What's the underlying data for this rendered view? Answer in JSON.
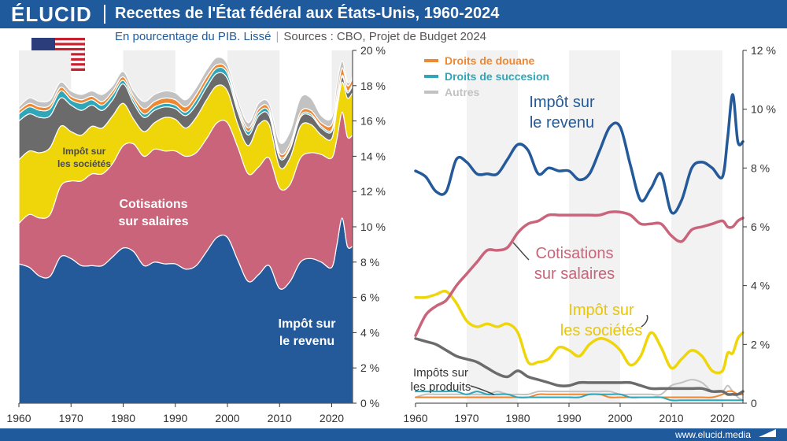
{
  "header": {
    "logo": "ÉLUCID",
    "title": "Recettes de l'État fédéral aux États-Unis, 1960-2024",
    "subtitle_part1": "En pourcentage du PIB. Lissé",
    "subtitle_part2": "Sources : CBO, Projet de Budget 2024"
  },
  "footer": {
    "url": "www.elucid.media"
  },
  "colors": {
    "brand": "#1f5a9c",
    "impot_revenu": "#245a9a",
    "cotisations": "#c9647a",
    "impot_societes": "#eed60a",
    "impots_produits": "#6b6b6b",
    "droits_succession": "#2fa7b9",
    "droits_douane": "#ee8833",
    "autres": "#c2c2c2"
  },
  "chart_data": [
    {
      "type": "area",
      "stacked": true,
      "x": [
        1960,
        1962,
        1964,
        1966,
        1968,
        1970,
        1972,
        1974,
        1976,
        1978,
        1980,
        1982,
        1984,
        1986,
        1988,
        1990,
        1992,
        1994,
        1996,
        1998,
        2000,
        2002,
        2004,
        2006,
        2008,
        2010,
        2012,
        2014,
        2016,
        2018,
        2020,
        2021,
        2022,
        2023,
        2024
      ],
      "series": [
        {
          "name": "Impôt sur le revenu",
          "values": [
            7.9,
            7.7,
            7.2,
            7.2,
            8.3,
            8.2,
            7.8,
            7.8,
            7.8,
            8.3,
            8.8,
            8.6,
            7.8,
            8.0,
            7.9,
            7.9,
            7.6,
            7.8,
            8.6,
            9.4,
            9.4,
            8.1,
            6.9,
            7.3,
            7.8,
            6.5,
            6.9,
            8.0,
            8.2,
            8.0,
            7.7,
            9.0,
            10.5,
            8.9,
            8.9
          ]
        },
        {
          "name": "Cotisations sur salaires",
          "values": [
            2.3,
            3.0,
            3.3,
            3.5,
            4.0,
            4.4,
            4.8,
            5.2,
            5.2,
            5.3,
            5.8,
            6.1,
            6.2,
            6.4,
            6.4,
            6.4,
            6.4,
            6.4,
            6.4,
            6.5,
            6.5,
            6.4,
            6.1,
            6.1,
            6.1,
            5.7,
            5.5,
            5.9,
            6.0,
            6.1,
            6.2,
            6.0,
            6.0,
            6.2,
            6.3
          ]
        },
        {
          "name": "Impôt sur les sociétés",
          "values": [
            3.6,
            3.6,
            3.7,
            3.8,
            3.4,
            2.8,
            2.6,
            2.7,
            2.6,
            2.7,
            2.4,
            1.4,
            1.4,
            1.5,
            1.9,
            1.8,
            1.6,
            2.0,
            2.2,
            2.1,
            1.8,
            1.3,
            1.6,
            2.4,
            1.9,
            1.2,
            1.5,
            1.8,
            1.6,
            1.1,
            1.1,
            1.7,
            1.7,
            2.2,
            2.4
          ]
        },
        {
          "name": "Impôts sur les produits",
          "values": [
            2.2,
            2.1,
            2.0,
            1.8,
            1.6,
            1.5,
            1.4,
            1.2,
            1.0,
            0.9,
            1.1,
            0.9,
            0.8,
            0.7,
            0.6,
            0.6,
            0.7,
            0.7,
            0.7,
            0.7,
            0.7,
            0.7,
            0.6,
            0.5,
            0.5,
            0.5,
            0.5,
            0.5,
            0.5,
            0.4,
            0.4,
            0.3,
            0.3,
            0.3,
            0.4
          ]
        },
        {
          "name": "Droits de succesion",
          "values": [
            0.4,
            0.4,
            0.4,
            0.4,
            0.4,
            0.3,
            0.4,
            0.3,
            0.3,
            0.3,
            0.2,
            0.2,
            0.2,
            0.2,
            0.2,
            0.2,
            0.2,
            0.3,
            0.3,
            0.3,
            0.3,
            0.2,
            0.2,
            0.2,
            0.2,
            0.1,
            0.1,
            0.1,
            0.1,
            0.1,
            0.1,
            0.1,
            0.1,
            0.1,
            0.1
          ]
        },
        {
          "name": "Droits de douane",
          "values": [
            0.2,
            0.2,
            0.2,
            0.2,
            0.2,
            0.2,
            0.2,
            0.2,
            0.2,
            0.2,
            0.2,
            0.2,
            0.3,
            0.3,
            0.3,
            0.3,
            0.3,
            0.3,
            0.3,
            0.2,
            0.2,
            0.2,
            0.2,
            0.2,
            0.2,
            0.2,
            0.2,
            0.2,
            0.2,
            0.2,
            0.3,
            0.4,
            0.4,
            0.3,
            0.3
          ]
        },
        {
          "name": "Autres",
          "values": [
            0.2,
            0.3,
            0.3,
            0.3,
            0.3,
            0.3,
            0.3,
            0.3,
            0.4,
            0.3,
            0.3,
            0.3,
            0.4,
            0.4,
            0.4,
            0.4,
            0.4,
            0.4,
            0.4,
            0.4,
            0.3,
            0.3,
            0.3,
            0.3,
            0.3,
            0.6,
            0.7,
            0.8,
            0.7,
            0.4,
            0.4,
            0.6,
            0.4,
            0.2,
            0.1
          ]
        }
      ],
      "xlim": [
        1960,
        2024
      ],
      "ylim": [
        0,
        20
      ],
      "yticks": [
        "0 %",
        "2 %",
        "4 %",
        "6 %",
        "8 %",
        "10 %",
        "12 %",
        "14 %",
        "16 %",
        "18 %",
        "20 %"
      ],
      "xticks": [
        "1960",
        "1970",
        "1980",
        "1990",
        "2000",
        "2010",
        "2020"
      ],
      "annotations": [
        {
          "text": [
            "Impôt sur",
            "le revenu"
          ]
        },
        {
          "text": [
            "Cotisations",
            "sur salaires"
          ]
        },
        {
          "text": [
            "Impôt sur",
            "les sociétés"
          ]
        }
      ]
    },
    {
      "type": "line",
      "x": [
        1960,
        1962,
        1964,
        1966,
        1968,
        1970,
        1972,
        1974,
        1976,
        1978,
        1980,
        1982,
        1984,
        1986,
        1988,
        1990,
        1992,
        1994,
        1996,
        1998,
        2000,
        2002,
        2004,
        2006,
        2008,
        2010,
        2012,
        2014,
        2016,
        2018,
        2020,
        2021,
        2022,
        2023,
        2024
      ],
      "series_ref": "same values as the stacked chart",
      "xlim": [
        1960,
        2024
      ],
      "ylim": [
        0,
        12
      ],
      "yticks": [
        "0",
        "2 %",
        "4 %",
        "6 %",
        "8 %",
        "10 %",
        "12 %"
      ],
      "xticks": [
        "1960",
        "1970",
        "1980",
        "1990",
        "2000",
        "2010",
        "2020"
      ],
      "legend": {
        "placement": "top-left",
        "entries": [
          "Droits de douane",
          "Droits de succesion",
          "Autres"
        ]
      },
      "labels": {
        "impot_revenu": [
          "Impôt sur",
          "le revenu"
        ],
        "cotisations": [
          "Cotisations",
          "sur salaires"
        ],
        "impot_societes": [
          "Impôt sur",
          "les sociétés"
        ],
        "impots_produits": [
          "Impôts sur",
          "les produits"
        ]
      }
    }
  ]
}
